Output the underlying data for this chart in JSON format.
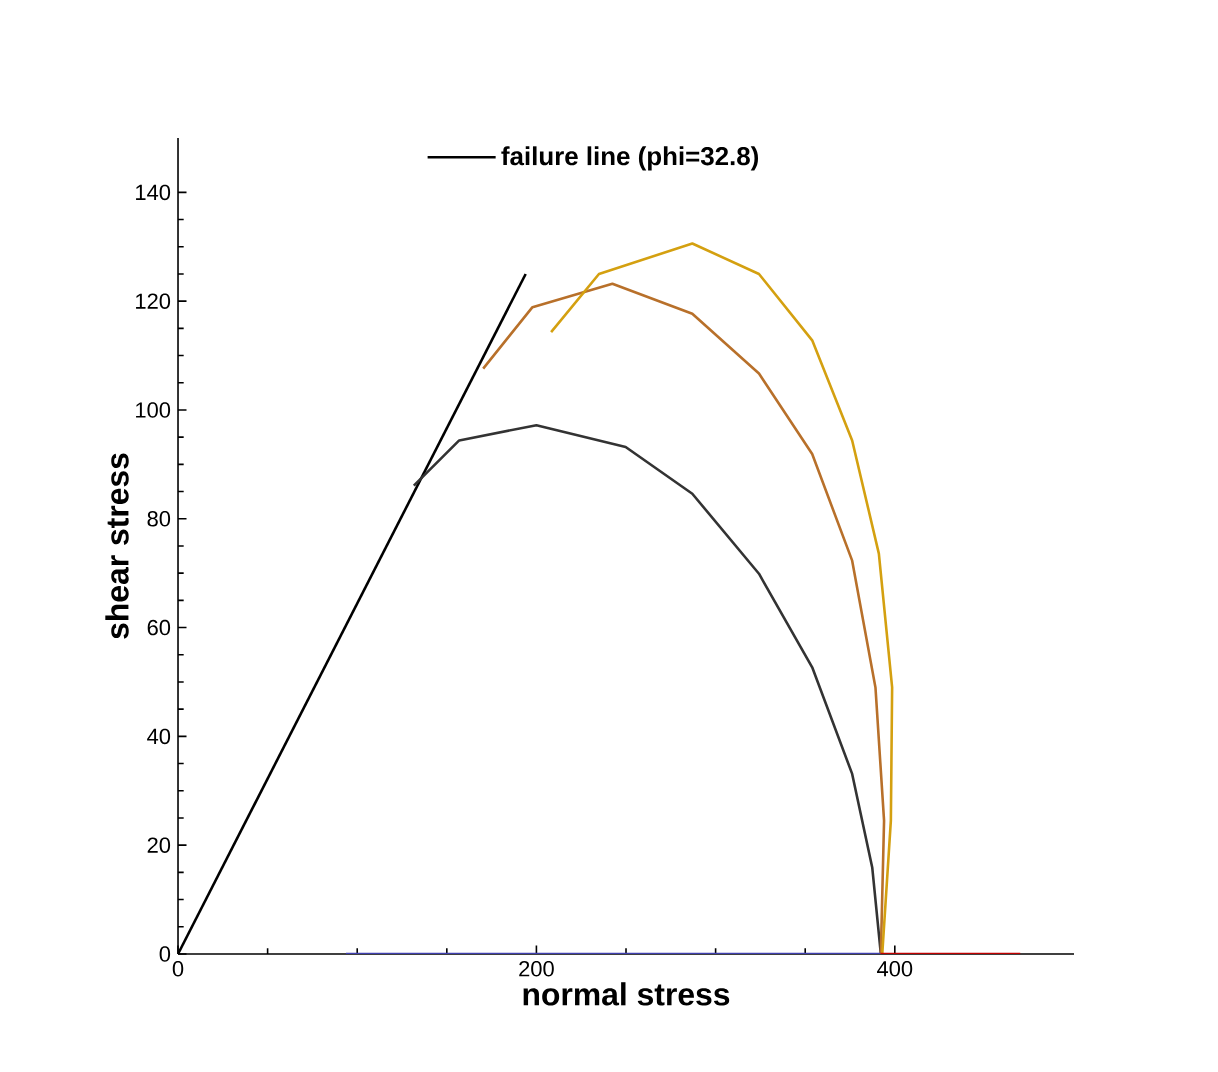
{
  "chart_data": {
    "type": "line",
    "xlabel": "normal stress",
    "ylabel": "shear stress",
    "xlim": [
      0,
      500
    ],
    "ylim": [
      0,
      150
    ],
    "xticks": [
      0,
      200,
      400
    ],
    "yticks": [
      0,
      20,
      40,
      60,
      80,
      100,
      120,
      140
    ],
    "grid": false,
    "legend": "top",
    "marker": "none",
    "line_style": "solid",
    "series": [
      {
        "name": "failure line (phi=32.8)",
        "color": "#000000",
        "x": [
          0,
          194
        ],
        "values": [
          0,
          125
        ]
      },
      {
        "color": "#333333",
        "x": [
          131.6,
          156.9,
          200,
          249.8,
          287,
          324.2,
          353.9,
          376.2,
          387.4,
          392.2
        ],
        "values": [
          86.1,
          94.4,
          97.2,
          93.2,
          84.6,
          69.9,
          52.7,
          33.1,
          15.9,
          0
        ]
      },
      {
        "color": "#b8702a",
        "x": [
          170.3,
          197.8,
          242.4,
          287,
          324.2,
          353.9,
          376.2,
          389.2,
          394,
          392.2
        ],
        "values": [
          107.6,
          118.9,
          123.2,
          117.7,
          106.7,
          91.9,
          72.3,
          49,
          24.5,
          0
        ]
      },
      {
        "color": "#d4a010",
        "x": [
          208.2,
          234.9,
          287,
          324.2,
          353.9,
          376.2,
          391.1,
          398.5,
          397.8,
          393
        ],
        "values": [
          114.3,
          125,
          130.6,
          125,
          112.8,
          94.4,
          73.6,
          49,
          24.5,
          0
        ]
      },
      {
        "color": "#4040b0",
        "x": [
          93.7,
          392
        ],
        "values": [
          0,
          0
        ]
      },
      {
        "color": "#c00000",
        "x": [
          392,
          470
        ],
        "values": [
          0,
          0
        ]
      }
    ]
  }
}
